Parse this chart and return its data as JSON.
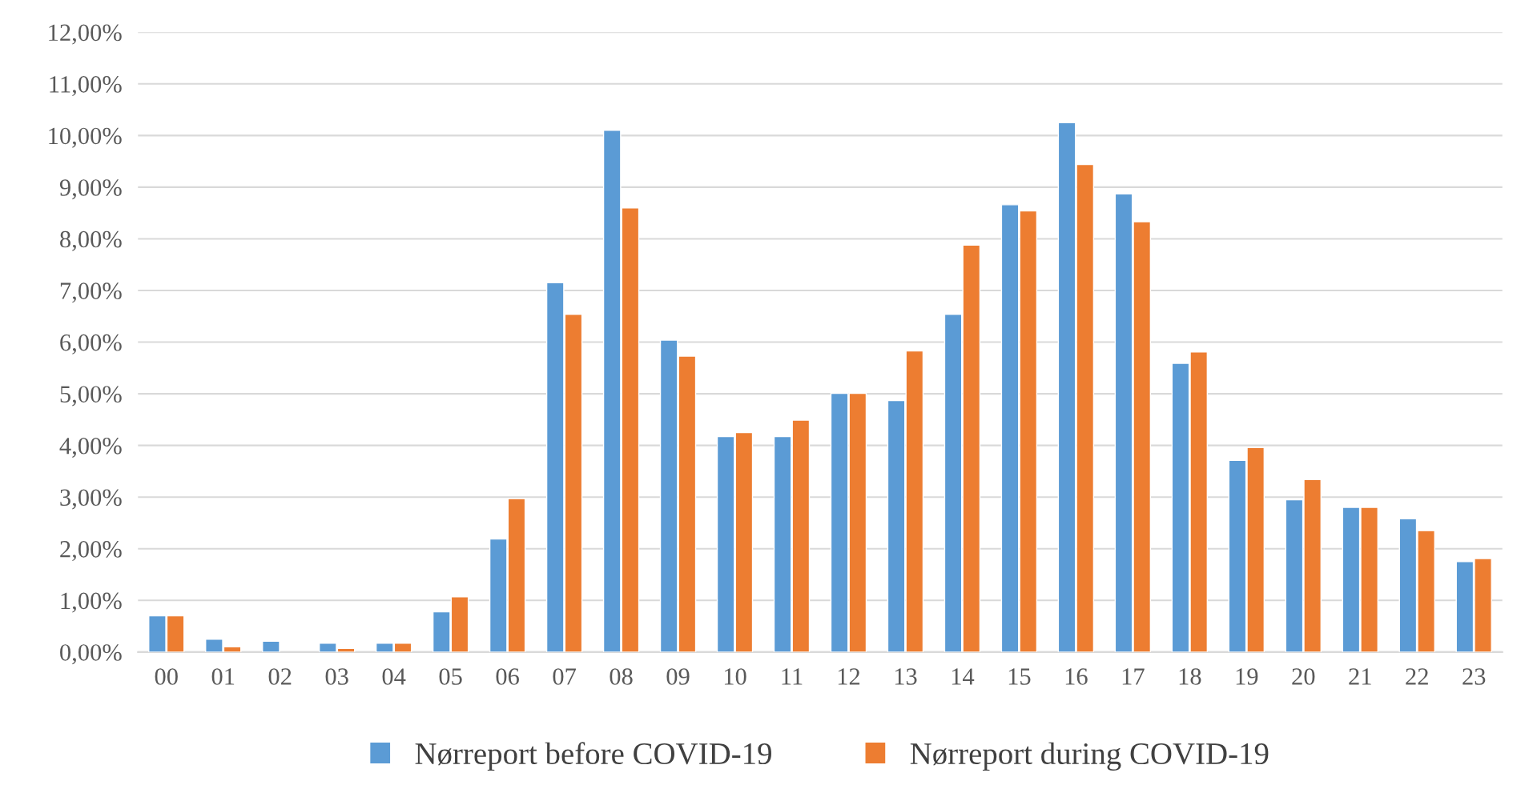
{
  "chart_data": {
    "type": "bar",
    "categories": [
      "00",
      "01",
      "02",
      "03",
      "04",
      "05",
      "06",
      "07",
      "08",
      "09",
      "10",
      "11",
      "12",
      "13",
      "14",
      "15",
      "16",
      "17",
      "18",
      "19",
      "20",
      "21",
      "22",
      "23"
    ],
    "series": [
      {
        "name": "Nørreport before COVID-19",
        "color": "#5b9bd5",
        "values": [
          0.7,
          0.25,
          0.21,
          0.17,
          0.17,
          0.78,
          2.19,
          7.15,
          10.1,
          6.04,
          4.17,
          4.17,
          5.01,
          4.87,
          6.54,
          8.66,
          10.25,
          8.87,
          5.59,
          3.71,
          2.95,
          2.8,
          2.58,
          1.75
        ]
      },
      {
        "name": "Nørreport during COVID-19",
        "color": "#ed7d31",
        "values": [
          0.7,
          0.1,
          null,
          0.07,
          0.17,
          1.07,
          2.97,
          6.54,
          8.6,
          5.73,
          4.25,
          4.49,
          5.01,
          5.83,
          7.88,
          8.54,
          9.44,
          8.33,
          5.81,
          3.96,
          3.34,
          2.8,
          2.35,
          1.81
        ]
      }
    ],
    "ylim": [
      0,
      12
    ],
    "yticks": [
      {
        "value": 0,
        "label": "0,00%"
      },
      {
        "value": 1,
        "label": "1,00%"
      },
      {
        "value": 2,
        "label": "2,00%"
      },
      {
        "value": 3,
        "label": "3,00%"
      },
      {
        "value": 4,
        "label": "4,00%"
      },
      {
        "value": 5,
        "label": "5,00%"
      },
      {
        "value": 6,
        "label": "6,00%"
      },
      {
        "value": 7,
        "label": "7,00%"
      },
      {
        "value": 8,
        "label": "8,00%"
      },
      {
        "value": 9,
        "label": "9,00%"
      },
      {
        "value": 10,
        "label": "10,00%"
      },
      {
        "value": 11,
        "label": "11,00%"
      },
      {
        "value": 12,
        "label": "12,00%"
      }
    ],
    "grid": "y",
    "legend": "bottom"
  }
}
